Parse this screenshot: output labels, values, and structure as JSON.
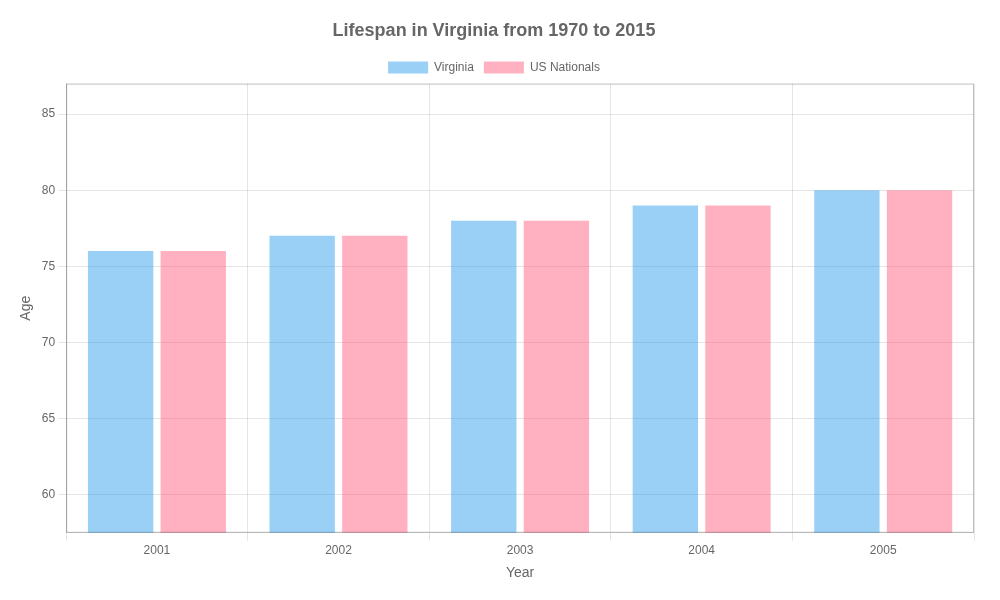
{
  "chart_data": {
    "type": "bar",
    "title": "Lifespan in Virginia from 1970 to 2015",
    "xlabel": "Year",
    "ylabel": "Age",
    "categories": [
      "2001",
      "2002",
      "2003",
      "2004",
      "2005"
    ],
    "series": [
      {
        "name": "Virginia",
        "values": [
          76,
          77,
          78,
          79,
          80
        ]
      },
      {
        "name": "US Nationals",
        "values": [
          76,
          77,
          78,
          79,
          80
        ]
      }
    ],
    "ylim": [
      57.5,
      87
    ],
    "yticks": [
      60,
      65,
      70,
      75,
      80,
      85
    ],
    "grid": true,
    "legend": "top"
  }
}
